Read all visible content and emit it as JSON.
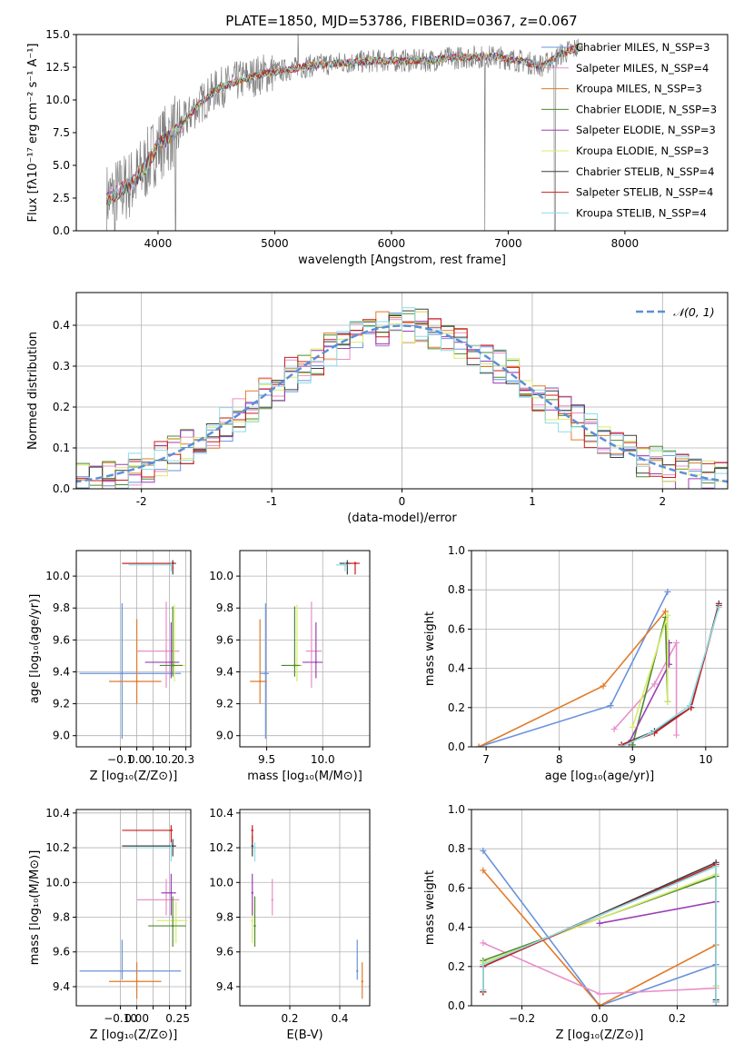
{
  "colors": {
    "chabrier_miles": "#6a93dc",
    "salpeter_miles": "#e98fc8",
    "kroupa_miles": "#e07b2a",
    "chabrier_elodie": "#4f8a2f",
    "salpeter_elodie": "#9b3fb5",
    "kroupa_elodie": "#d8ec6a",
    "chabrier_stelib": "#3f3f3f",
    "salpeter_stelib": "#c81e1e",
    "kroupa_stelib": "#8fdbe6",
    "data": "#808080",
    "normal": "#5b8fd6"
  },
  "chart_data": [
    {
      "id": "spectrum",
      "type": "line",
      "title": "PLATE=1850, MJD=53786, FIBERID=0367, z=0.067",
      "xlabel": "wavelength [Angstrom, rest frame]",
      "ylabel": "Flux [fλ10⁻¹⁷ erg cm⁻² s⁻¹ A⁻¹]",
      "xlim": [
        3300,
        8880
      ],
      "ylim": [
        0,
        15
      ],
      "xticks": [
        4000,
        5000,
        6000,
        7000,
        8000
      ],
      "yticks": [
        0.0,
        2.5,
        5.0,
        7.5,
        10.0,
        12.5,
        15.0
      ],
      "grid": false,
      "legend_position": "right",
      "continuum_x": [
        3580,
        3700,
        3800,
        3900,
        4000,
        4100,
        4200,
        4300,
        4400,
        4500,
        4700,
        4900,
        5100,
        5300,
        5500,
        5700,
        5900,
        6100,
        6300,
        6500,
        6700,
        6900,
        7100,
        7300,
        7450,
        7600
      ],
      "continuum_y": [
        2.5,
        3.2,
        3.8,
        5.0,
        6.5,
        7.2,
        8.0,
        9.2,
        10.0,
        10.8,
        11.5,
        12.0,
        12.3,
        12.6,
        12.8,
        12.9,
        13.0,
        13.0,
        13.0,
        13.2,
        13.3,
        13.3,
        13.0,
        12.6,
        13.5,
        14.0
      ],
      "series": [
        {
          "name": "Chabrier MILES, N_SSP=3",
          "color_key": "chabrier_miles"
        },
        {
          "name": "Salpeter MILES, N_SSP=4",
          "color_key": "salpeter_miles"
        },
        {
          "name": "Kroupa MILES, N_SSP=3",
          "color_key": "kroupa_miles"
        },
        {
          "name": "Chabrier ELODIE, N_SSP=3",
          "color_key": "chabrier_elodie"
        },
        {
          "name": "Salpeter ELODIE, N_SSP=3",
          "color_key": "salpeter_elodie"
        },
        {
          "name": "Kroupa ELODIE, N_SSP=3",
          "color_key": "kroupa_elodie"
        },
        {
          "name": "Chabrier STELIB, N_SSP=4",
          "color_key": "chabrier_stelib"
        },
        {
          "name": "Salpeter STELIB, N_SSP=4",
          "color_key": "salpeter_stelib"
        },
        {
          "name": "Kroupa STELIB, N_SSP=4",
          "color_key": "kroupa_stelib"
        }
      ]
    },
    {
      "id": "residuals",
      "type": "line",
      "xlabel": "(data-model)/error",
      "ylabel": "Normed distribution",
      "xlim": [
        -2.5,
        2.5
      ],
      "ylim": [
        0,
        0.48
      ],
      "xticks": [
        -2,
        -1,
        0,
        1,
        2
      ],
      "yticks": [
        0.0,
        0.1,
        0.2,
        0.3,
        0.4
      ],
      "grid": true,
      "legend_position": "top-right",
      "legend_label": "𝒩(0, 1)",
      "bin_width": 0.1
    },
    {
      "id": "age_vs_Z",
      "type": "scatter",
      "xlabel": "Z [log₁₀(Z/Z⊙)]",
      "ylabel": "age  [log₁₀(age/yr)]",
      "xlim": [
        -0.37,
        0.33
      ],
      "ylim": [
        8.93,
        10.16
      ],
      "xticks": [
        -0.1,
        0.0,
        0.1,
        0.2,
        0.3
      ],
      "xticklabels": [
        "−0.1",
        "0.0",
        "0.1",
        "0.2",
        "0.3"
      ],
      "yticks": [
        9.0,
        9.2,
        9.4,
        9.6,
        9.8,
        10.0
      ],
      "grid": true,
      "points": [
        {
          "c": "chabrier_miles",
          "x": -0.09,
          "xe": [
            -0.35,
            0.27
          ],
          "y": 9.39,
          "ye": [
            8.98,
            9.83
          ]
        },
        {
          "c": "kroupa_miles",
          "x": 0.0,
          "xe": [
            -0.17,
            0.15
          ],
          "y": 9.34,
          "ye": [
            9.2,
            9.73
          ]
        },
        {
          "c": "salpeter_miles",
          "x": 0.18,
          "xe": [
            0.0,
            0.26
          ],
          "y": 9.53,
          "ye": [
            9.3,
            9.84
          ]
        },
        {
          "c": "kroupa_elodie",
          "x": 0.23,
          "xe": [
            0.17,
            0.3
          ],
          "y": 9.44,
          "ye": [
            9.34,
            9.82
          ]
        },
        {
          "c": "salpeter_elodie",
          "x": 0.21,
          "xe": [
            0.05,
            0.26
          ],
          "y": 9.46,
          "ye": [
            9.36,
            9.71
          ]
        },
        {
          "c": "chabrier_elodie",
          "x": 0.22,
          "xe": [
            0.14,
            0.28
          ],
          "y": 9.44,
          "ye": [
            9.37,
            9.81
          ]
        },
        {
          "c": "chabrier_stelib",
          "x": 0.22,
          "xe": [
            -0.09,
            0.24
          ],
          "y": 10.08,
          "ye": [
            10.01,
            10.1
          ]
        },
        {
          "c": "salpeter_stelib",
          "x": 0.22,
          "xe": [
            -0.09,
            0.22
          ],
          "y": 10.08,
          "ye": [
            10.04,
            10.09
          ]
        },
        {
          "c": "kroupa_stelib",
          "x": 0.21,
          "xe": [
            -0.05,
            0.22
          ],
          "y": 10.07,
          "ye": [
            10.03,
            10.09
          ]
        }
      ]
    },
    {
      "id": "age_vs_mass",
      "type": "scatter",
      "xlabel": "mass [log₁₀(M/M⊙)]",
      "ylabel": "",
      "xlim": [
        9.26,
        10.42
      ],
      "ylim": [
        8.93,
        10.16
      ],
      "xticks": [
        9.5,
        10.0
      ],
      "xticklabels": [
        "9.5",
        "10.0"
      ],
      "yticks": [
        9.0,
        9.2,
        9.4,
        9.6,
        9.8,
        10.0
      ],
      "grid": true,
      "points": [
        {
          "c": "chabrier_miles",
          "x": 9.49,
          "xe": [
            9.44,
            9.52
          ],
          "y": 9.39,
          "ye": [
            8.98,
            9.83
          ]
        },
        {
          "c": "kroupa_miles",
          "x": 9.44,
          "xe": [
            9.35,
            9.5
          ],
          "y": 9.34,
          "ye": [
            9.2,
            9.73
          ]
        },
        {
          "c": "salpeter_miles",
          "x": 9.9,
          "xe": [
            9.85,
            9.99
          ],
          "y": 9.53,
          "ye": [
            9.3,
            9.84
          ]
        },
        {
          "c": "kroupa_elodie",
          "x": 9.77,
          "xe": [
            9.65,
            9.82
          ],
          "y": 9.44,
          "ye": [
            9.34,
            9.82
          ]
        },
        {
          "c": "salpeter_elodie",
          "x": 9.94,
          "xe": [
            9.82,
            10.0
          ],
          "y": 9.46,
          "ye": [
            9.36,
            9.71
          ]
        },
        {
          "c": "chabrier_elodie",
          "x": 9.75,
          "xe": [
            9.63,
            9.8
          ],
          "y": 9.44,
          "ye": [
            9.37,
            9.81
          ]
        },
        {
          "c": "chabrier_stelib",
          "x": 10.22,
          "xe": [
            10.15,
            10.25
          ],
          "y": 10.08,
          "ye": [
            10.01,
            10.1
          ]
        },
        {
          "c": "salpeter_stelib",
          "x": 10.29,
          "xe": [
            10.23,
            10.33
          ],
          "y": 10.08,
          "ye": [
            10.01,
            10.09
          ]
        },
        {
          "c": "kroupa_stelib",
          "x": 10.2,
          "xe": [
            10.12,
            10.22
          ],
          "y": 10.07,
          "ye": [
            10.03,
            10.09
          ]
        }
      ]
    },
    {
      "id": "weight_vs_age",
      "type": "line",
      "xlabel": "age  [log₁₀(age/yr)]",
      "ylabel": "mass weight",
      "xlim": [
        6.8,
        10.3
      ],
      "ylim": [
        0,
        1.0
      ],
      "xticks": [
        7,
        8,
        9,
        10
      ],
      "yticks": [
        0.0,
        0.2,
        0.4,
        0.6,
        0.8,
        1.0
      ],
      "grid": true,
      "series": [
        {
          "c": "chabrier_miles",
          "x": [
            6.9,
            8.7,
            9.48
          ],
          "y": [
            0.0,
            0.21,
            0.79
          ]
        },
        {
          "c": "kroupa_miles",
          "x": [
            6.9,
            8.6,
            9.45
          ],
          "y": [
            0.0,
            0.31,
            0.69
          ]
        },
        {
          "c": "salpeter_miles",
          "x": [
            8.75,
            9.3,
            9.6,
            9.6
          ],
          "y": [
            0.09,
            0.32,
            0.53,
            0.06
          ]
        },
        {
          "c": "chabrier_elodie",
          "x": [
            9.0,
            9.45,
            9.48
          ],
          "y": [
            0.01,
            0.66,
            0.23
          ]
        },
        {
          "c": "salpeter_elodie",
          "x": [
            8.95,
            9.5,
            9.5
          ],
          "y": [
            0.02,
            0.42,
            0.53
          ]
        },
        {
          "c": "kroupa_elodie",
          "x": [
            9.0,
            9.48,
            9.48
          ],
          "y": [
            0.1,
            0.67,
            0.23
          ]
        },
        {
          "c": "chabrier_stelib",
          "x": [
            8.85,
            9.3,
            9.8,
            10.18
          ],
          "y": [
            0.01,
            0.08,
            0.2,
            0.73
          ]
        },
        {
          "c": "salpeter_stelib",
          "x": [
            8.85,
            9.3,
            9.8,
            10.18
          ],
          "y": [
            0.01,
            0.07,
            0.2,
            0.72
          ]
        },
        {
          "c": "kroupa_stelib",
          "x": [
            8.85,
            9.25,
            9.78,
            10.18
          ],
          "y": [
            0.0,
            0.07,
            0.21,
            0.71
          ]
        }
      ]
    },
    {
      "id": "mass_vs_Z",
      "type": "scatter",
      "xlabel": "Z [log₁₀(Z/Z⊙)]",
      "ylabel": "mass [log₁₀(M/M⊙)]",
      "xlim": [
        -0.37,
        0.33
      ],
      "ylim": [
        9.29,
        10.42
      ],
      "xticks": [
        -0.1,
        0.0,
        0.1,
        0.2,
        0.3
      ],
      "xticklabels": [
        "−0.10",
        "0.00",
        "0.25"
      ],
      "xticklabel_positions": [
        -0.1,
        0.0,
        0.25
      ],
      "yticks": [
        9.4,
        9.6,
        9.8,
        10.0,
        10.2,
        10.4
      ],
      "grid": true,
      "points": [
        {
          "c": "chabrier_miles",
          "x": -0.09,
          "xe": [
            -0.35,
            0.27
          ],
          "y": 9.49,
          "ye": [
            9.44,
            9.67
          ]
        },
        {
          "c": "kroupa_miles",
          "x": 0.0,
          "xe": [
            -0.17,
            0.15
          ],
          "y": 9.43,
          "ye": [
            9.33,
            9.54
          ]
        },
        {
          "c": "salpeter_miles",
          "x": 0.18,
          "xe": [
            0.0,
            0.26
          ],
          "y": 9.9,
          "ye": [
            9.81,
            10.02
          ]
        },
        {
          "c": "kroupa_elodie",
          "x": 0.24,
          "xe": [
            0.12,
            0.31
          ],
          "y": 9.78,
          "ye": [
            9.65,
            9.89
          ]
        },
        {
          "c": "salpeter_elodie",
          "x": 0.21,
          "xe": [
            0.15,
            0.24
          ],
          "y": 9.94,
          "ye": [
            9.81,
            10.05
          ]
        },
        {
          "c": "chabrier_elodie",
          "x": 0.22,
          "xe": [
            0.07,
            0.3
          ],
          "y": 9.75,
          "ye": [
            9.63,
            9.92
          ]
        },
        {
          "c": "chabrier_stelib",
          "x": 0.22,
          "xe": [
            -0.09,
            0.24
          ],
          "y": 10.21,
          "ye": [
            10.15,
            10.25
          ]
        },
        {
          "c": "salpeter_stelib",
          "x": 0.21,
          "xe": [
            -0.09,
            0.22
          ],
          "y": 10.3,
          "ye": [
            10.23,
            10.33
          ]
        },
        {
          "c": "kroupa_stelib",
          "x": 0.21,
          "xe": [
            -0.05,
            0.22
          ],
          "y": 10.2,
          "ye": [
            10.12,
            10.23
          ]
        }
      ]
    },
    {
      "id": "mass_vs_ebv",
      "type": "scatter",
      "xlabel": "E(B-V)",
      "ylabel": "",
      "xlim": [
        0.0,
        0.52
      ],
      "ylim": [
        9.29,
        10.42
      ],
      "xticks": [
        0.2,
        0.4
      ],
      "xticklabels": [
        "0.2",
        "0.4"
      ],
      "yticks": [
        9.4,
        9.6,
        9.8,
        10.0,
        10.2,
        10.4
      ],
      "grid": true,
      "points": [
        {
          "c": "chabrier_miles",
          "x": 0.47,
          "y": 9.49,
          "ye": [
            9.44,
            9.67
          ]
        },
        {
          "c": "kroupa_miles",
          "x": 0.49,
          "y": 9.43,
          "ye": [
            9.33,
            9.54
          ]
        },
        {
          "c": "salpeter_miles",
          "x": 0.13,
          "y": 9.9,
          "ye": [
            9.81,
            10.02
          ]
        },
        {
          "c": "kroupa_elodie",
          "x": 0.05,
          "y": 9.78,
          "ye": [
            9.65,
            9.89
          ]
        },
        {
          "c": "salpeter_elodie",
          "x": 0.05,
          "y": 9.94,
          "ye": [
            9.81,
            10.05
          ]
        },
        {
          "c": "chabrier_elodie",
          "x": 0.06,
          "y": 9.75,
          "ye": [
            9.63,
            9.92
          ]
        },
        {
          "c": "chabrier_stelib",
          "x": 0.05,
          "y": 10.21,
          "ye": [
            10.15,
            10.27
          ]
        },
        {
          "c": "salpeter_stelib",
          "x": 0.05,
          "y": 10.3,
          "ye": [
            10.23,
            10.33
          ]
        },
        {
          "c": "kroupa_stelib",
          "x": 0.06,
          "y": 10.2,
          "ye": [
            10.12,
            10.23
          ]
        }
      ]
    },
    {
      "id": "weight_vs_Z",
      "type": "line",
      "xlabel": "Z [log₁₀(Z/Z⊙)]",
      "ylabel": "mass weight",
      "xlim": [
        -0.33,
        0.33
      ],
      "ylim": [
        0,
        1.0
      ],
      "xticks": [
        -0.2,
        0.0,
        0.2
      ],
      "xticklabels": [
        "−0.2",
        "0.0",
        "0.2"
      ],
      "yticks": [
        0.0,
        0.2,
        0.4,
        0.6,
        0.8,
        1.0
      ],
      "grid": true,
      "series": [
        {
          "c": "chabrier_miles",
          "x": [
            -0.3,
            0.0,
            0.3,
            0.3
          ],
          "y": [
            0.79,
            0.0,
            0.21,
            0.0
          ]
        },
        {
          "c": "kroupa_miles",
          "x": [
            -0.3,
            0.0,
            0.3
          ],
          "y": [
            0.69,
            0.0,
            0.31
          ]
        },
        {
          "c": "salpeter_miles",
          "x": [
            -0.3,
            0.0,
            0.3,
            0.3
          ],
          "y": [
            0.32,
            0.06,
            0.09,
            0.53
          ]
        },
        {
          "c": "chabrier_elodie",
          "x": [
            -0.3,
            -0.3,
            0.3,
            0.3
          ],
          "y": [
            0.07,
            0.23,
            0.66,
            0.1
          ]
        },
        {
          "c": "salpeter_elodie",
          "x": [
            0.0,
            0.3,
            0.3
          ],
          "y": [
            0.42,
            0.53,
            0.02
          ]
        },
        {
          "c": "kroupa_elodie",
          "x": [
            -0.3,
            -0.3,
            0.3,
            0.3
          ],
          "y": [
            0.08,
            0.22,
            0.67,
            0.1
          ]
        },
        {
          "c": "chabrier_stelib",
          "x": [
            -0.3,
            -0.3,
            0.3,
            0.3
          ],
          "y": [
            0.07,
            0.2,
            0.73,
            0.03
          ]
        },
        {
          "c": "salpeter_stelib",
          "x": [
            -0.3,
            -0.3,
            0.3,
            0.3
          ],
          "y": [
            0.07,
            0.2,
            0.72,
            0.02
          ]
        },
        {
          "c": "kroupa_stelib",
          "x": [
            -0.3,
            -0.3,
            0.3,
            0.3
          ],
          "y": [
            0.08,
            0.21,
            0.71,
            0.02
          ]
        }
      ]
    }
  ]
}
